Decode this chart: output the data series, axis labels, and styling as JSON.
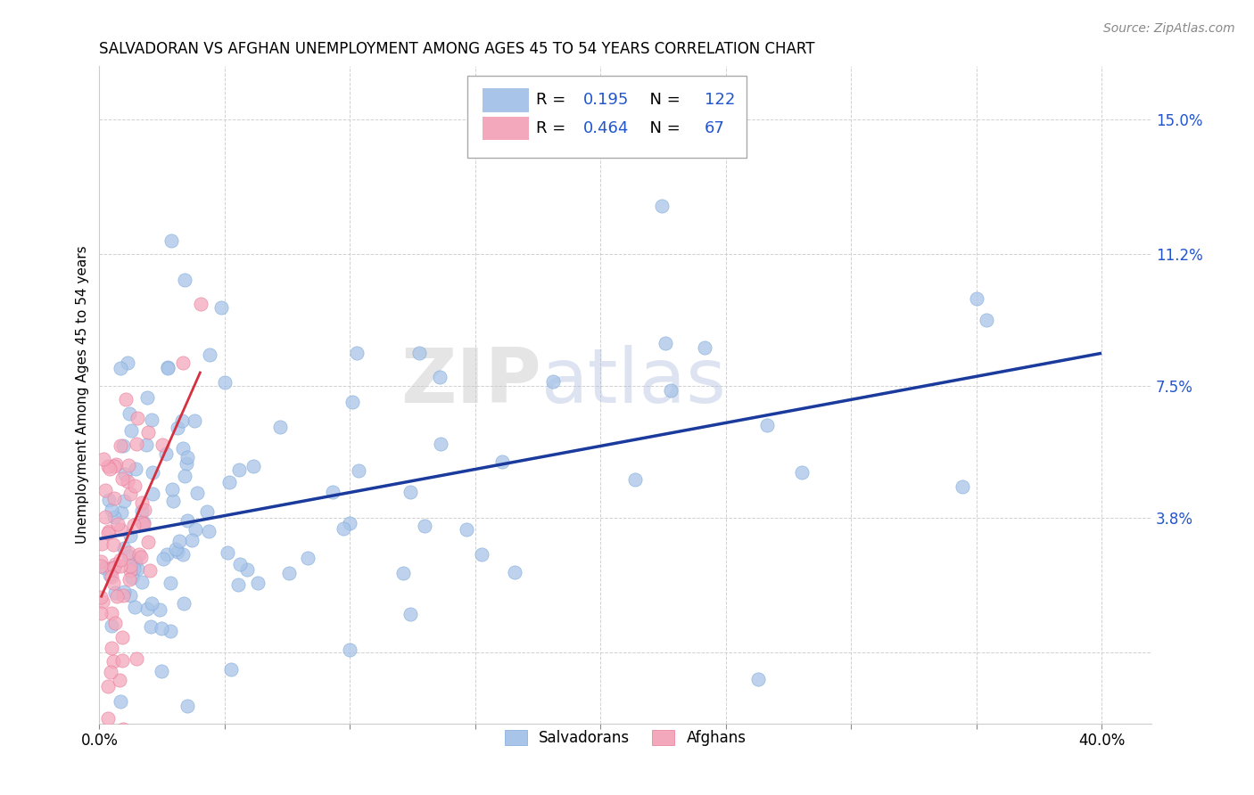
{
  "title": "SALVADORAN VS AFGHAN UNEMPLOYMENT AMONG AGES 45 TO 54 YEARS CORRELATION CHART",
  "source": "Source: ZipAtlas.com",
  "ylabel": "Unemployment Among Ages 45 to 54 years",
  "xlim": [
    0.0,
    0.42
  ],
  "ylim": [
    -0.02,
    0.165
  ],
  "xticks": [
    0.0,
    0.05,
    0.1,
    0.15,
    0.2,
    0.25,
    0.3,
    0.35,
    0.4
  ],
  "ytick_positions": [
    0.0,
    0.038,
    0.075,
    0.112,
    0.15
  ],
  "salvadoran_R": 0.195,
  "salvadoran_N": 122,
  "afghan_R": 0.464,
  "afghan_N": 67,
  "watermark": "ZIPatlas",
  "salvadoran_color": "#a8c4e8",
  "afghan_color": "#f4a8bc",
  "salvadoran_edge_color": "#7ba8d8",
  "afghan_edge_color": "#e87898",
  "salvadoran_line_color": "#1a3a9c",
  "afghan_line_color": "#d43040",
  "background_color": "#ffffff",
  "grid_color": "#cccccc",
  "right_tick_color": "#2255cc",
  "salv_seed": 42,
  "afgh_seed": 7
}
